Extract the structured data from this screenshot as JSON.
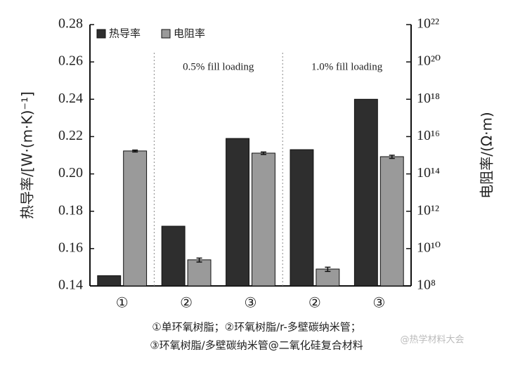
{
  "chart_data": {
    "type": "bar",
    "ylabel": "热导率/[W·(m·K)⁻¹]",
    "y2label": "电阻率/(Ω·m)",
    "categories": [
      "①",
      "②",
      "③",
      "②",
      "③"
    ],
    "series": [
      {
        "name": "热导率",
        "color": "#2e2e2e",
        "values": [
          0.1455,
          0.172,
          0.219,
          0.213,
          0.24
        ]
      },
      {
        "name": "电阻率",
        "color": "#9a9a9a",
        "axis": "y2",
        "values": [
          1700000000000000.0,
          2500000000.0,
          1300000000000000.0,
          800000000.0,
          840000000000000.0
        ],
        "errors": [
          200000000000000.0,
          600000000.0,
          200000000000000.0,
          200000000.0,
          160000000000000.0
        ]
      }
    ],
    "ylim": [
      0.14,
      0.28
    ],
    "yticks": [
      0.14,
      0.16,
      0.18,
      {
        "value": 0.2,
        "label": "0.20"
      },
      0.22,
      0.24,
      0.26,
      0.28
    ],
    "y2lim": [
      100000000.0,
      1e+22
    ],
    "y2log": true,
    "y2ticks": [
      {
        "value": 100000000.0,
        "label": "10⁸"
      },
      {
        "value": 10000000000.0,
        "label": "10¹⁰"
      },
      {
        "value": 1000000000000.0,
        "label": "10¹²"
      },
      {
        "value": 100000000000000.0,
        "label": "10¹⁴"
      },
      {
        "value": 1e+16,
        "label": "10¹⁶"
      },
      {
        "value": 1e+18,
        "label": "10¹⁸"
      },
      {
        "value": 1e+20,
        "label": "10²⁰"
      },
      {
        "value": 1e+22,
        "label": "10²²"
      }
    ],
    "annotations": [
      "0.5% fill loading",
      "1.0% fill loading"
    ],
    "caption": [
      "①单环氧树脂；②环氧树脂/r-多壁碳纳米管；",
      "③环氧树脂/多壁碳纳米管@二氧化硅复合材料"
    ],
    "watermark": "@热学材料大会",
    "legend": "upper left"
  }
}
